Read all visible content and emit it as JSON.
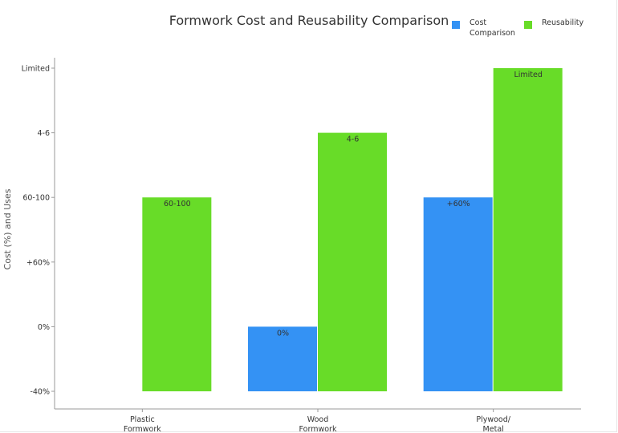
{
  "chart_data": {
    "type": "bar",
    "title": "Formwork Cost and Reusability Comparison",
    "ylabel": "Cost (%) and Uses",
    "xlabel": "",
    "categories": [
      "Plastic\nFormwork",
      "Wood\nFormwork",
      "Plywood/\nMetal"
    ],
    "ytick_labels": [
      "-40%",
      "0%",
      "+60%",
      "60-100",
      "4-6",
      "Limited"
    ],
    "ylim": [
      0,
      5
    ],
    "series": [
      {
        "name": "Cost\nComparison",
        "color": "#3492f4",
        "values": [
          null,
          1,
          3
        ],
        "labels": [
          "",
          "0%",
          "+60%"
        ]
      },
      {
        "name": "Reusability",
        "color": "#68dc28",
        "values": [
          3,
          4,
          5
        ],
        "labels": [
          "60-100",
          "4-6",
          "Limited"
        ]
      }
    ],
    "legend_position": "top-right",
    "grid": false
  }
}
